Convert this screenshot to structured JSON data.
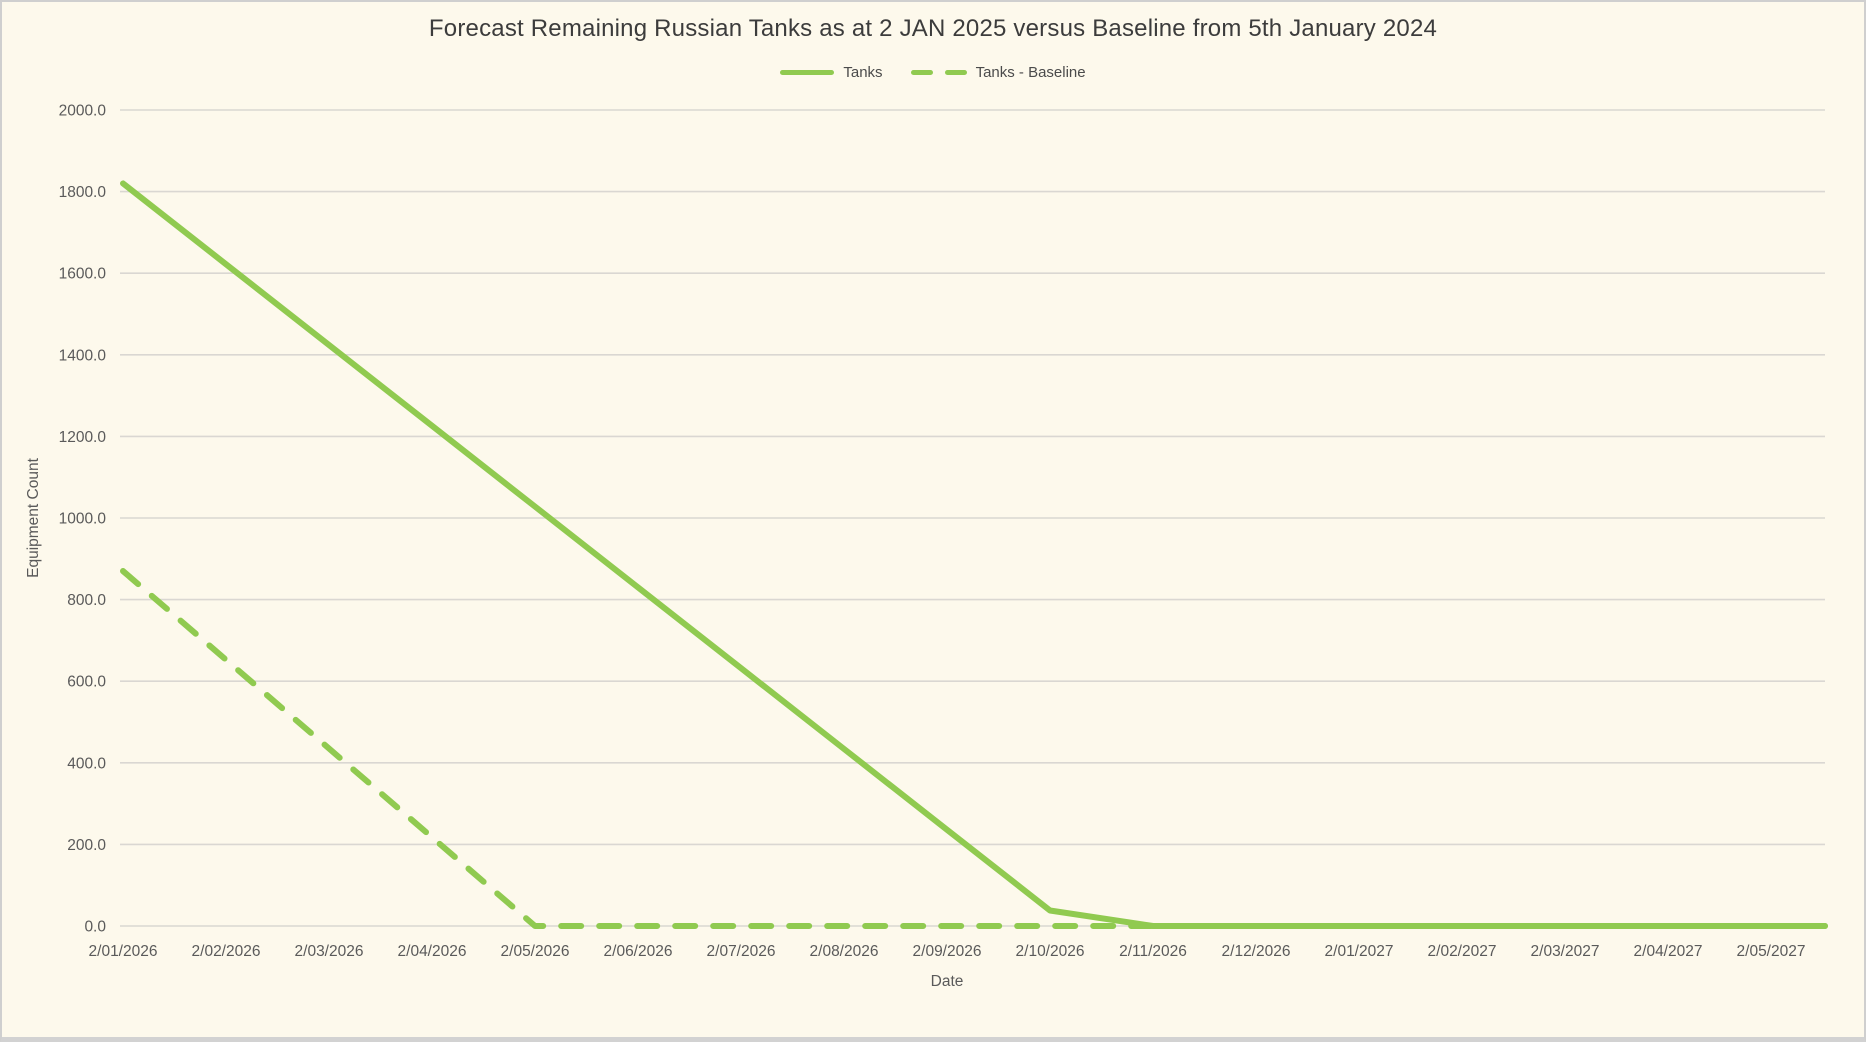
{
  "window": {
    "background": "#FDF9EC",
    "border_color": "#CFCFCF"
  },
  "chart": {
    "title": "Forecast Remaining Russian Tanks as at 2 JAN 2025 versus Baseline from 5th January 2024",
    "accent_green": "#90CA50",
    "gridline_color": "#DAD7D2",
    "text_color": "#5A5A5A"
  },
  "chart_data": {
    "type": "line",
    "title": "Forecast Remaining Russian Tanks as at 2 JAN 2025 versus Baseline from 5th January 2024",
    "xlabel": "Date",
    "ylabel": "Equipment Count",
    "ylim": [
      0,
      2000
    ],
    "ytick_step": 200,
    "ytick_labels": [
      "0.0",
      "200.0",
      "400.0",
      "600.0",
      "800.0",
      "1000.0",
      "1200.0",
      "1400.0",
      "1600.0",
      "1800.0",
      "2000.0"
    ],
    "grid": "horizontal",
    "legend_position": "top-center",
    "categories": [
      "2/01/2026",
      "2/02/2026",
      "2/03/2026",
      "2/04/2026",
      "2/05/2026",
      "2/06/2026",
      "2/07/2026",
      "2/08/2026",
      "2/09/2026",
      "2/10/2026",
      "2/11/2026",
      "2/12/2026",
      "2/01/2027",
      "2/02/2027",
      "2/03/2027",
      "2/04/2027",
      "2/05/2027"
    ],
    "series": [
      {
        "name": "Tanks",
        "style": "solid",
        "color": "#90CA50",
        "values": [
          1820,
          1622,
          1424,
          1226,
          1028,
          830,
          632,
          434,
          236,
          38,
          0,
          0,
          0,
          0,
          0,
          0,
          0
        ]
      },
      {
        "name": "Tanks - Baseline",
        "style": "dashed",
        "color": "#90CA50",
        "values": [
          870,
          652.5,
          435,
          217.5,
          0,
          0,
          0,
          0,
          0,
          0,
          0,
          0,
          0,
          0,
          0,
          0,
          0
        ]
      }
    ]
  }
}
